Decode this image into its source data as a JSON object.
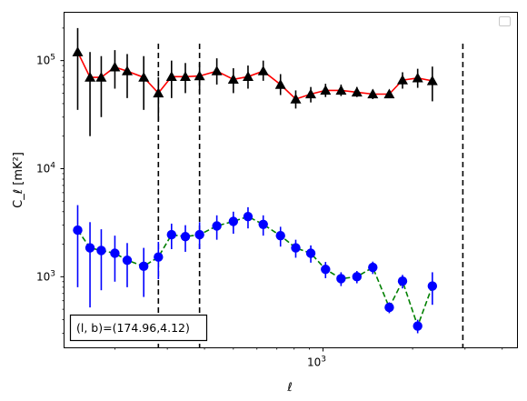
{
  "chart_data": {
    "type": "scatter",
    "x_scale": "log",
    "y_scale": "log",
    "xlim": [
      135,
      4500
    ],
    "ylim": [
      220,
      280000
    ],
    "xlabel": "ℓ",
    "ylabel": "C_ℓ  [mK²]",
    "x_tick_labels": [
      {
        "value": 1000,
        "base": "10",
        "exp": "3"
      }
    ],
    "y_tick_labels": [
      {
        "value": 1000,
        "base": "10",
        "exp": "3"
      },
      {
        "value": 10000,
        "base": "10",
        "exp": "4"
      },
      {
        "value": 100000,
        "base": "10",
        "exp": "5"
      }
    ],
    "grid": false,
    "legend": {
      "placement": "top-right",
      "entries": []
    },
    "annotation": "(l, b)=(174.96,4.12)",
    "vertical_lines": [
      280,
      385,
      2950
    ],
    "series": [
      {
        "marker": "triangle",
        "marker_color": "#000000",
        "line_color": "#ff0000",
        "line_style": "solid",
        "points": [
          {
            "x": 150,
            "y": 120000,
            "lo": 35000,
            "hi": 200000
          },
          {
            "x": 165,
            "y": 70000,
            "lo": 20000,
            "hi": 120000
          },
          {
            "x": 180,
            "y": 70000,
            "lo": 30000,
            "hi": 110000
          },
          {
            "x": 200,
            "y": 87000,
            "lo": 55000,
            "hi": 125000
          },
          {
            "x": 220,
            "y": 80000,
            "lo": 45000,
            "hi": 115000
          },
          {
            "x": 250,
            "y": 70000,
            "lo": 35000,
            "hi": 110000
          },
          {
            "x": 280,
            "y": 50000,
            "lo": 28000,
            "hi": 70000
          },
          {
            "x": 310,
            "y": 71000,
            "lo": 45000,
            "hi": 100000
          },
          {
            "x": 345,
            "y": 71000,
            "lo": 50000,
            "hi": 95000
          },
          {
            "x": 385,
            "y": 72000,
            "lo": 50000,
            "hi": 95000
          },
          {
            "x": 440,
            "y": 80000,
            "lo": 60000,
            "hi": 105000
          },
          {
            "x": 500,
            "y": 67000,
            "lo": 50000,
            "hi": 85000
          },
          {
            "x": 560,
            "y": 71000,
            "lo": 55000,
            "hi": 90000
          },
          {
            "x": 630,
            "y": 80000,
            "lo": 65000,
            "hi": 100000
          },
          {
            "x": 720,
            "y": 60000,
            "lo": 48000,
            "hi": 75000
          },
          {
            "x": 810,
            "y": 44000,
            "lo": 36000,
            "hi": 53000
          },
          {
            "x": 910,
            "y": 49000,
            "lo": 41000,
            "hi": 57000
          },
          {
            "x": 1020,
            "y": 53000,
            "lo": 46000,
            "hi": 61000
          },
          {
            "x": 1150,
            "y": 53000,
            "lo": 47000,
            "hi": 60000
          },
          {
            "x": 1300,
            "y": 51000,
            "lo": 46000,
            "hi": 57000
          },
          {
            "x": 1470,
            "y": 49000,
            "lo": 44000,
            "hi": 54000
          },
          {
            "x": 1670,
            "y": 49000,
            "lo": 45000,
            "hi": 53000
          },
          {
            "x": 1850,
            "y": 66000,
            "lo": 55000,
            "hi": 78000
          },
          {
            "x": 2080,
            "y": 69000,
            "lo": 56000,
            "hi": 84000
          },
          {
            "x": 2330,
            "y": 65000,
            "lo": 42000,
            "hi": 88000
          }
        ]
      },
      {
        "marker": "circle",
        "marker_color": "#0000ff",
        "line_color": "#008000",
        "line_style": "dashed",
        "points": [
          {
            "x": 150,
            "y": 2700,
            "lo": 800,
            "hi": 4600
          },
          {
            "x": 165,
            "y": 1850,
            "lo": 520,
            "hi": 3200
          },
          {
            "x": 180,
            "y": 1750,
            "lo": 750,
            "hi": 2750
          },
          {
            "x": 200,
            "y": 1650,
            "lo": 900,
            "hi": 2400
          },
          {
            "x": 220,
            "y": 1420,
            "lo": 800,
            "hi": 2050
          },
          {
            "x": 250,
            "y": 1250,
            "lo": 650,
            "hi": 1850
          },
          {
            "x": 280,
            "y": 1520,
            "lo": 950,
            "hi": 2100
          },
          {
            "x": 310,
            "y": 2450,
            "lo": 1800,
            "hi": 3100
          },
          {
            "x": 345,
            "y": 2350,
            "lo": 1700,
            "hi": 3000
          },
          {
            "x": 385,
            "y": 2450,
            "lo": 1800,
            "hi": 3200
          },
          {
            "x": 440,
            "y": 2950,
            "lo": 2200,
            "hi": 3700
          },
          {
            "x": 500,
            "y": 3250,
            "lo": 2500,
            "hi": 4000
          },
          {
            "x": 560,
            "y": 3600,
            "lo": 2800,
            "hi": 4400
          },
          {
            "x": 630,
            "y": 3050,
            "lo": 2400,
            "hi": 3700
          },
          {
            "x": 720,
            "y": 2400,
            "lo": 1900,
            "hi": 2900
          },
          {
            "x": 810,
            "y": 1850,
            "lo": 1500,
            "hi": 2200
          },
          {
            "x": 910,
            "y": 1650,
            "lo": 1350,
            "hi": 1950
          },
          {
            "x": 1020,
            "y": 1170,
            "lo": 970,
            "hi": 1370
          },
          {
            "x": 1150,
            "y": 960,
            "lo": 820,
            "hi": 1100
          },
          {
            "x": 1300,
            "y": 1000,
            "lo": 870,
            "hi": 1130
          },
          {
            "x": 1470,
            "y": 1220,
            "lo": 1060,
            "hi": 1380
          },
          {
            "x": 1670,
            "y": 520,
            "lo": 460,
            "hi": 580
          },
          {
            "x": 1850,
            "y": 910,
            "lo": 780,
            "hi": 1040
          },
          {
            "x": 2080,
            "y": 350,
            "lo": 300,
            "hi": 400
          },
          {
            "x": 2330,
            "y": 820,
            "lo": 550,
            "hi": 1100
          }
        ]
      }
    ]
  }
}
